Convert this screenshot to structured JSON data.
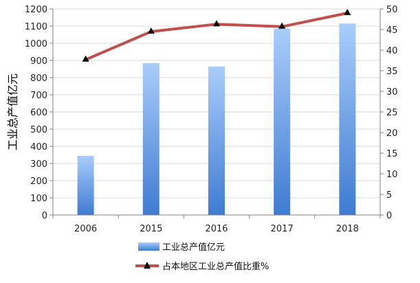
{
  "chart_data": {
    "type": "bar+line",
    "categories": [
      "2006",
      "2015",
      "2016",
      "2017",
      "2018"
    ],
    "ylabel": "工业总产值亿元",
    "y_left": {
      "min": 0,
      "max": 1200,
      "step": 100
    },
    "y_right": {
      "min": 0,
      "max": 50,
      "step": 5
    },
    "grid": "horizontal",
    "legend_position": "bottom",
    "series": [
      {
        "name": "工业总产值亿元",
        "type": "bar",
        "axis": "left",
        "values": [
          345,
          885,
          865,
          1085,
          1115
        ],
        "color_top": "#a9cdfb",
        "color_bottom": "#3f7bd1"
      },
      {
        "name": "占本地区工业总产值比重%",
        "type": "line",
        "axis": "right",
        "values": [
          37.7,
          44.5,
          46.3,
          45.7,
          49.0
        ],
        "color": "#c0504d",
        "marker": "triangle",
        "marker_color": "#000000"
      }
    ]
  }
}
